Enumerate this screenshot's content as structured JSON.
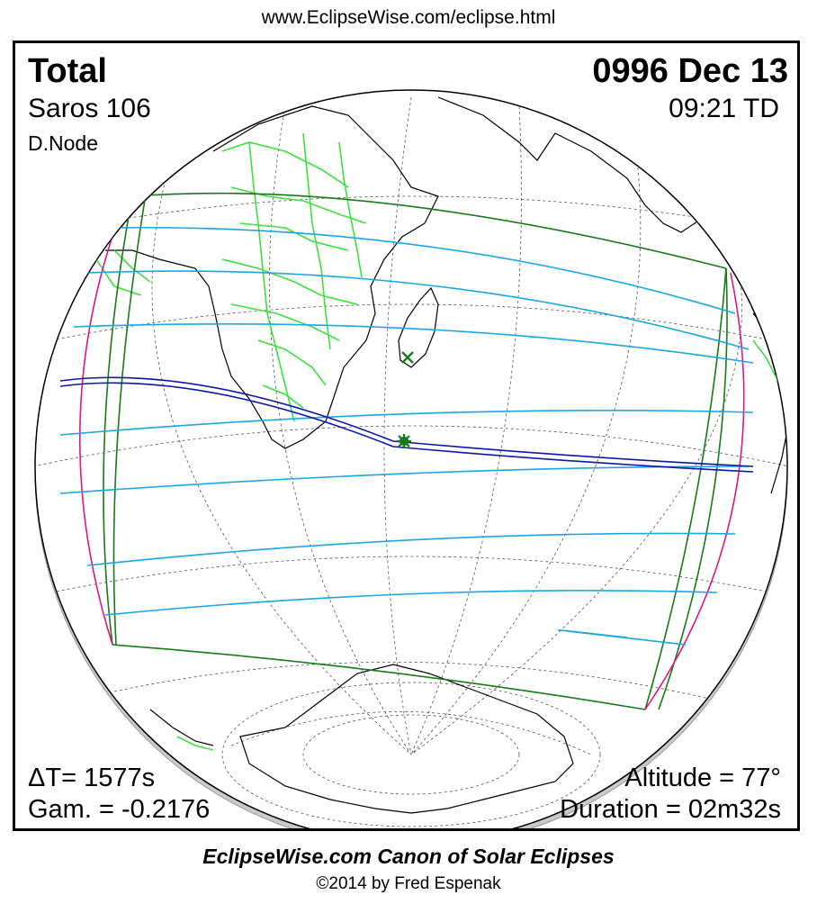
{
  "header": {
    "url": "www.EclipseWise.com/eclipse.html"
  },
  "eclipse": {
    "type": "Total",
    "saros": "Saros 106",
    "node": "D.Node",
    "date": "0996 Dec 13",
    "time": "09:21 TD",
    "delta_t": "ΔT=   1577s",
    "gamma": "Gam. = -0.2176",
    "altitude": "Altitude = 77°",
    "duration": "Duration = 02m32s"
  },
  "footer": {
    "canon": "EclipseWise.com Canon of Solar Eclipses",
    "copyright": "©2014 by Fred Espenak"
  },
  "colors": {
    "border": "#000000",
    "central_path": "#0b16a6",
    "penumbra_lines": "#1ca6e6",
    "penumbra_limits": "#157a18",
    "rise_set_curves": "#e0167f",
    "political_borders": "#3de03d",
    "coastlines": "#000000",
    "graticule": "#555555"
  },
  "markers": {
    "greatest_eclipse": "asterisk-icon",
    "subsolar_point": "cross-icon"
  }
}
